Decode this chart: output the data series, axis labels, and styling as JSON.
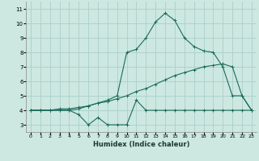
{
  "xlabel": "Humidex (Indice chaleur)",
  "background_color": "#cce8e0",
  "grid_color": "#aad0c8",
  "line_color": "#1a6b5a",
  "xlim": [
    -0.5,
    23.5
  ],
  "ylim": [
    2.5,
    11.5
  ],
  "xticks": [
    0,
    1,
    2,
    3,
    4,
    5,
    6,
    7,
    8,
    9,
    10,
    11,
    12,
    13,
    14,
    15,
    16,
    17,
    18,
    19,
    20,
    21,
    22,
    23
  ],
  "yticks": [
    3,
    4,
    5,
    6,
    7,
    8,
    9,
    10,
    11
  ],
  "series1_x": [
    0,
    1,
    2,
    3,
    4,
    5,
    6,
    7,
    8,
    9,
    10,
    11,
    12,
    13,
    14,
    15,
    16,
    17,
    18,
    19,
    20,
    21,
    22,
    23
  ],
  "series1_y": [
    4.0,
    4.0,
    4.0,
    4.0,
    4.0,
    3.7,
    3.0,
    3.5,
    3.0,
    3.0,
    3.0,
    4.7,
    4.0,
    4.0,
    4.0,
    4.0,
    4.0,
    4.0,
    4.0,
    4.0,
    4.0,
    4.0,
    4.0,
    4.0
  ],
  "series2_x": [
    0,
    1,
    2,
    3,
    4,
    5,
    6,
    7,
    8,
    9,
    10,
    11,
    12,
    13,
    14,
    15,
    16,
    17,
    18,
    19,
    20,
    21,
    22,
    23
  ],
  "series2_y": [
    4.0,
    4.0,
    4.0,
    4.1,
    4.1,
    4.2,
    4.3,
    4.5,
    4.6,
    4.8,
    5.0,
    5.3,
    5.5,
    5.8,
    6.1,
    6.4,
    6.6,
    6.8,
    7.0,
    7.1,
    7.2,
    7.0,
    5.0,
    4.0
  ],
  "series3_x": [
    0,
    1,
    2,
    3,
    4,
    5,
    6,
    7,
    8,
    9,
    10,
    11,
    12,
    13,
    14,
    15,
    16,
    17,
    18,
    19,
    20,
    21,
    22,
    23
  ],
  "series3_y": [
    4.0,
    4.0,
    4.0,
    4.0,
    4.0,
    4.1,
    4.3,
    4.5,
    4.7,
    5.0,
    8.0,
    8.2,
    9.0,
    10.1,
    10.7,
    10.2,
    9.0,
    8.4,
    8.1,
    8.0,
    7.0,
    5.0,
    5.0,
    4.0
  ]
}
